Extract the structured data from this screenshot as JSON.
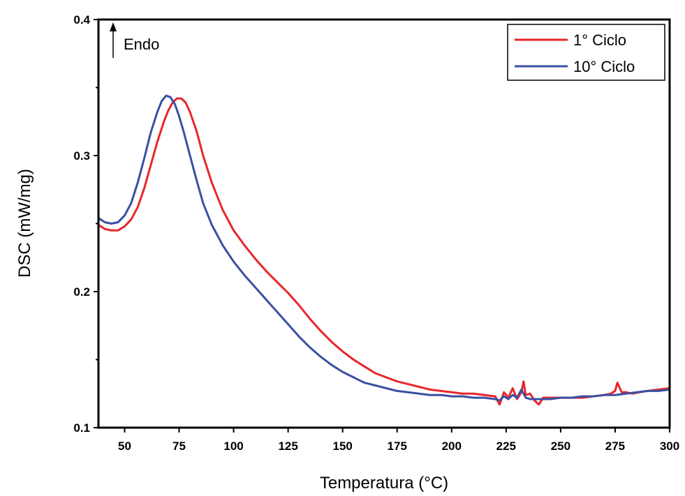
{
  "chart_data": {
    "type": "line",
    "title": "",
    "xlabel": "Temperatura (°C)",
    "ylabel": "DSC (mW/mg)",
    "xlim": [
      38,
      300
    ],
    "ylim": [
      0.1,
      0.4
    ],
    "x_ticks": [
      50,
      75,
      100,
      125,
      150,
      175,
      200,
      225,
      250,
      275,
      300
    ],
    "x_tick_labels": [
      "50",
      "75",
      "100",
      "125",
      "150",
      "175",
      "200",
      "225",
      "250",
      "275",
      "300"
    ],
    "y_major_ticks": [
      0.1,
      0.2,
      0.3,
      0.4
    ],
    "y_tick_labels": [
      "0.1",
      "0.2",
      "0.3",
      "0.4"
    ],
    "y_minor_ticks": [
      0.15,
      0.25,
      0.35
    ],
    "grid": false,
    "legend_position": "top-right",
    "annotation": {
      "text": "Endo",
      "arrow": "up",
      "position": "top-left"
    },
    "series": [
      {
        "name": "1° Ciclo",
        "color": "#e8262a",
        "x": [
          38,
          41,
          44,
          47,
          50,
          53,
          56,
          59,
          62,
          65,
          68,
          70,
          72,
          74,
          76,
          78,
          80,
          83,
          86,
          90,
          95,
          100,
          105,
          110,
          115,
          120,
          125,
          130,
          135,
          140,
          145,
          150,
          155,
          160,
          165,
          170,
          175,
          180,
          185,
          190,
          195,
          200,
          205,
          210,
          215,
          220,
          222,
          224,
          226,
          228,
          230,
          232,
          233,
          234,
          236,
          238,
          240,
          242,
          245,
          250,
          255,
          260,
          265,
          270,
          273,
          275,
          276,
          278,
          280,
          283,
          286,
          290,
          295,
          300
        ],
        "y": [
          0.249,
          0.246,
          0.245,
          0.245,
          0.248,
          0.253,
          0.262,
          0.276,
          0.293,
          0.31,
          0.325,
          0.333,
          0.339,
          0.342,
          0.342,
          0.339,
          0.332,
          0.318,
          0.3,
          0.28,
          0.26,
          0.245,
          0.234,
          0.224,
          0.215,
          0.207,
          0.199,
          0.19,
          0.18,
          0.171,
          0.163,
          0.156,
          0.15,
          0.145,
          0.14,
          0.137,
          0.134,
          0.132,
          0.13,
          0.128,
          0.127,
          0.126,
          0.125,
          0.125,
          0.124,
          0.123,
          0.117,
          0.126,
          0.122,
          0.129,
          0.121,
          0.126,
          0.134,
          0.124,
          0.125,
          0.12,
          0.117,
          0.122,
          0.122,
          0.122,
          0.122,
          0.122,
          0.123,
          0.124,
          0.125,
          0.127,
          0.133,
          0.126,
          0.126,
          0.125,
          0.126,
          0.127,
          0.128,
          0.129
        ]
      },
      {
        "name": "10° Ciclo",
        "color": "#3a4fa3",
        "x": [
          38,
          41,
          44,
          47,
          50,
          53,
          56,
          59,
          62,
          65,
          67,
          69,
          71,
          73,
          75,
          77,
          80,
          83,
          86,
          90,
          95,
          100,
          105,
          110,
          115,
          120,
          125,
          130,
          135,
          140,
          145,
          150,
          155,
          160,
          165,
          170,
          175,
          180,
          185,
          190,
          195,
          200,
          205,
          210,
          215,
          220,
          222,
          224,
          226,
          228,
          230,
          232,
          234,
          236,
          240,
          245,
          250,
          255,
          260,
          265,
          270,
          275,
          280,
          285,
          290,
          295,
          300
        ],
        "y": [
          0.254,
          0.251,
          0.25,
          0.251,
          0.256,
          0.265,
          0.28,
          0.298,
          0.317,
          0.332,
          0.34,
          0.344,
          0.343,
          0.338,
          0.329,
          0.318,
          0.3,
          0.282,
          0.265,
          0.249,
          0.234,
          0.222,
          0.212,
          0.203,
          0.194,
          0.185,
          0.176,
          0.167,
          0.159,
          0.152,
          0.146,
          0.141,
          0.137,
          0.133,
          0.131,
          0.129,
          0.127,
          0.126,
          0.125,
          0.124,
          0.124,
          0.123,
          0.123,
          0.122,
          0.122,
          0.121,
          0.12,
          0.123,
          0.121,
          0.124,
          0.122,
          0.128,
          0.122,
          0.121,
          0.121,
          0.121,
          0.122,
          0.122,
          0.123,
          0.123,
          0.124,
          0.124,
          0.125,
          0.126,
          0.127,
          0.127,
          0.128
        ]
      }
    ]
  }
}
